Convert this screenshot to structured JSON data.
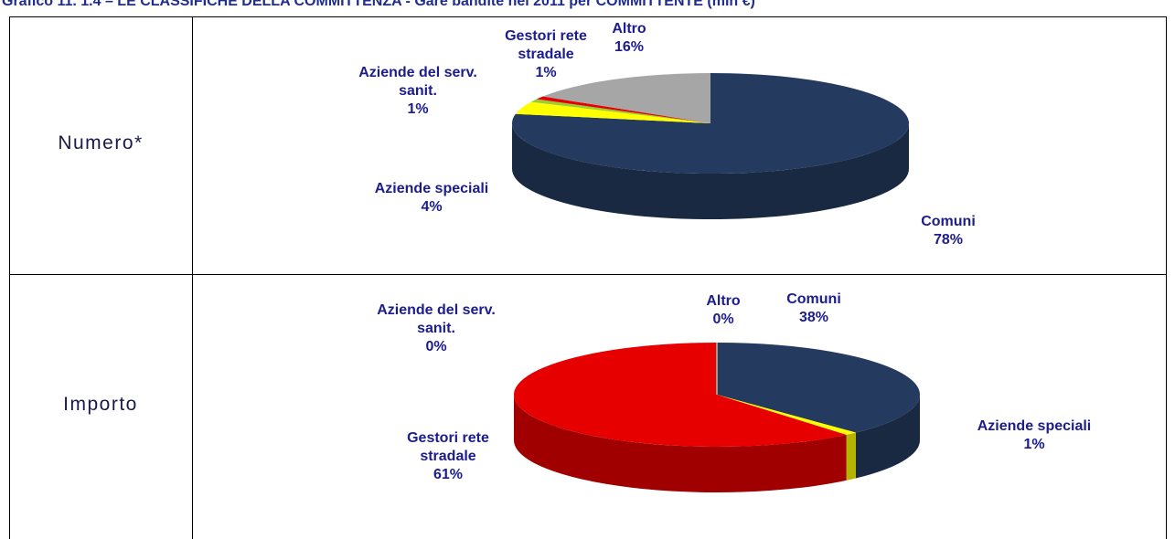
{
  "title": "Grafico 11. 1.4 – LE CLASSIFICHE DELLA COMMITTENZA - Gare bandite nel 2011 per COMMITTENTE (mln €)",
  "chart_data": [
    {
      "type": "pie3d",
      "row_label": "Numero*",
      "categories": [
        "Comuni",
        "Aziende speciali",
        "Aziende del serv. sanit.",
        "Gestori rete stradale",
        "Altro"
      ],
      "values": [
        78,
        4,
        1,
        1,
        16
      ],
      "value_labels": [
        "78%",
        "4%",
        "1%",
        "1%",
        "16%"
      ],
      "colors": [
        "#243a5e",
        "#ffff00",
        "#9acd32",
        "#e60000",
        "#a6a6a6"
      ]
    },
    {
      "type": "pie3d",
      "row_label": "Importo",
      "categories": [
        "Comuni",
        "Aziende speciali",
        "Gestori rete stradale",
        "Aziende del serv. sanit.",
        "Altro"
      ],
      "values": [
        38,
        1,
        61,
        0,
        0
      ],
      "value_labels": [
        "38%",
        "1%",
        "61%",
        "0%",
        "0%"
      ],
      "colors": [
        "#243a5e",
        "#ffff00",
        "#e60000",
        "#9acd32",
        "#a6a6a6"
      ]
    }
  ]
}
